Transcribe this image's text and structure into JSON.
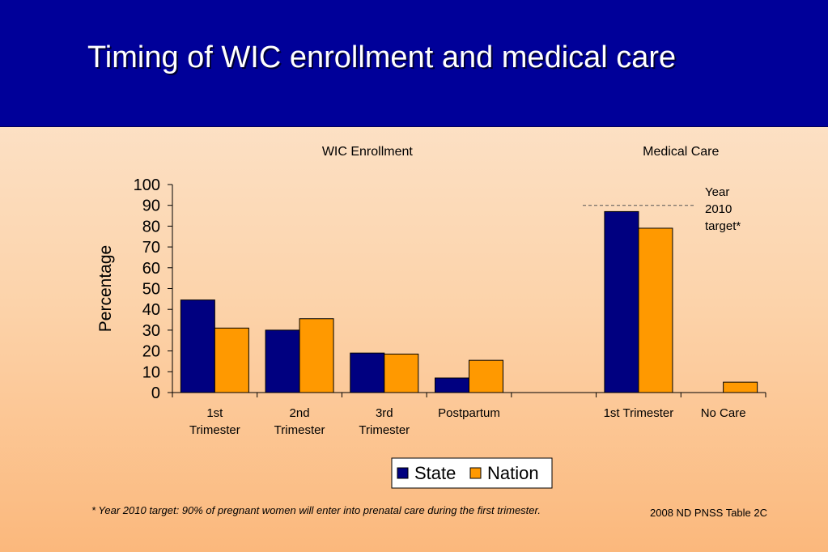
{
  "slide": {
    "title": "Timing of WIC enrollment and medical care",
    "footnote": "*  Year 2010 target: 90% of pregnant women will enter into prenatal care during the first trimester.",
    "source": "2008 ND PNSS Table 2C"
  },
  "chart_data": {
    "type": "bar",
    "group_labels": [
      "WIC Enrollment",
      "Medical Care"
    ],
    "categories": [
      [
        "1st",
        "Trimester"
      ],
      [
        "2nd",
        "Trimester"
      ],
      [
        "3rd",
        "Trimester"
      ],
      [
        "Postpartum"
      ],
      [
        ""
      ],
      [
        "1st Trimester"
      ],
      [
        "No Care"
      ]
    ],
    "series": [
      {
        "name": "State",
        "color": "#000080",
        "values": [
          44.5,
          30,
          19,
          7,
          null,
          87,
          null
        ]
      },
      {
        "name": "Nation",
        "color": "#ff9900",
        "values": [
          31,
          35.5,
          18.5,
          15.5,
          null,
          79,
          5
        ]
      }
    ],
    "ylabel": "Percentage",
    "ylim": [
      0,
      100
    ],
    "yticks": [
      0,
      10,
      20,
      30,
      40,
      50,
      60,
      70,
      80,
      90,
      100
    ],
    "target": {
      "value": 90,
      "label": [
        "Year",
        "2010",
        "target*"
      ]
    },
    "legend_position": "bottom-center",
    "grid": false
  }
}
